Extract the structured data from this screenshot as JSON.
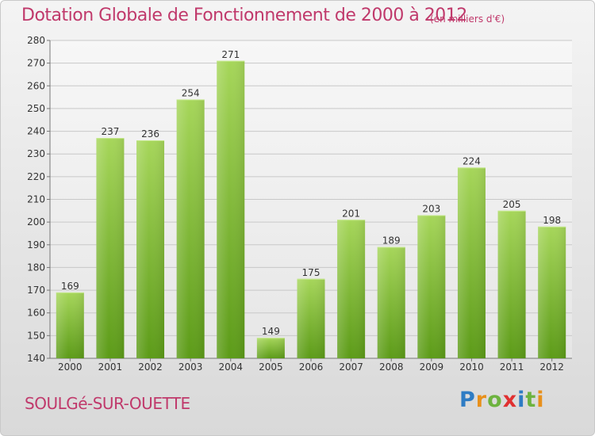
{
  "title": "Dotation Globale de Fonctionnement de 2000 à 2012",
  "subtitle": "(en milliers d'€)",
  "commune": "SOULGé-SUR-OUETTE",
  "logo": {
    "letters": [
      "P",
      "r",
      "o",
      "x",
      "i",
      "t",
      "i"
    ]
  },
  "colors": {
    "title": "#c0396b",
    "bar_top": "#9ccf4f",
    "bar_bottom": "#5f9e1c",
    "axis": "#555555"
  },
  "chart_data": {
    "type": "bar",
    "categories": [
      "2000",
      "2001",
      "2002",
      "2003",
      "2004",
      "2005",
      "2006",
      "2007",
      "2008",
      "2009",
      "2010",
      "2011",
      "2012"
    ],
    "values": [
      169,
      237,
      236,
      254,
      271,
      149,
      175,
      201,
      189,
      203,
      224,
      205,
      198
    ],
    "ylim": [
      140,
      280
    ],
    "yticks": [
      140,
      150,
      160,
      170,
      180,
      190,
      200,
      210,
      220,
      230,
      240,
      250,
      260,
      270,
      280
    ],
    "grid": true,
    "title": "Dotation Globale de Fonctionnement de 2000 à 2012",
    "xlabel": "",
    "ylabel": ""
  }
}
